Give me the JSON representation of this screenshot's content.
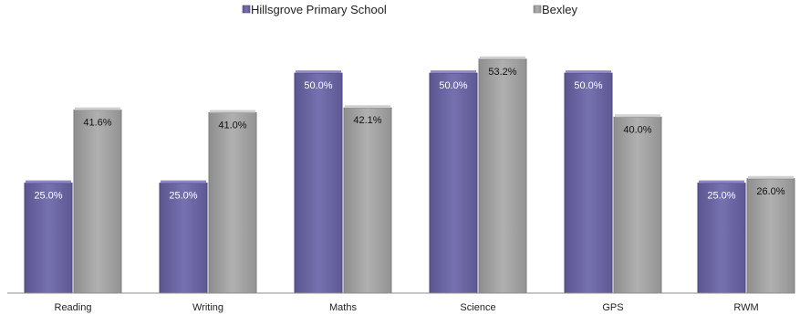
{
  "chart_data": {
    "type": "bar",
    "categories": [
      "Reading",
      "Writing",
      "Maths",
      "Science",
      "GPS",
      "RWM"
    ],
    "series": [
      {
        "name": "Hillsgrove Primary School",
        "values": [
          25.0,
          25.0,
          50.0,
          50.0,
          50.0,
          25.0
        ],
        "labels": [
          "25.0%",
          "25.0%",
          "50.0%",
          "50.0%",
          "50.0%",
          "25.0%"
        ]
      },
      {
        "name": "Bexley",
        "values": [
          41.6,
          41.0,
          42.1,
          53.2,
          40.0,
          26.0
        ],
        "labels": [
          "41.6%",
          "41.0%",
          "42.1%",
          "53.2%",
          "40.0%",
          "26.0%"
        ]
      }
    ],
    "ylim": [
      0,
      60
    ],
    "grid": false,
    "legend": "top",
    "colors": {
      "series0": "#6f6aa8",
      "series1": "#a4a4a4"
    }
  }
}
